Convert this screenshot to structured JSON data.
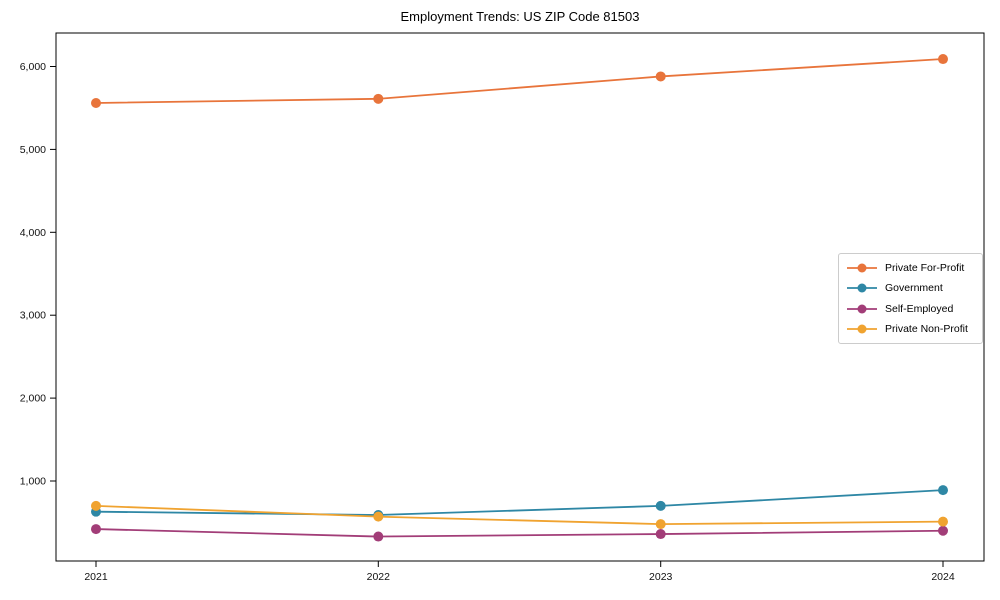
{
  "chart_data": {
    "type": "line",
    "title": "Employment Trends: US ZIP Code 81503",
    "x": [
      "2021",
      "2022",
      "2023",
      "2024"
    ],
    "series": [
      {
        "name": "Private For-Profit",
        "color": "#E8743B",
        "values": [
          5560,
          5610,
          5880,
          6090
        ]
      },
      {
        "name": "Government",
        "color": "#2E87A5",
        "values": [
          630,
          590,
          700,
          890
        ]
      },
      {
        "name": "Self-Employed",
        "color": "#A23D78",
        "values": [
          420,
          330,
          360,
          400
        ]
      },
      {
        "name": "Private Non-Profit",
        "color": "#F0A330",
        "values": [
          700,
          570,
          480,
          510
        ]
      }
    ],
    "y_ticks": [
      1000,
      2000,
      3000,
      4000,
      5000,
      6000
    ],
    "y_tick_labels": [
      "1,000",
      "2,000",
      "3,000",
      "4,000",
      "5,000",
      "6,000"
    ],
    "ylim": [
      35,
      6400
    ],
    "xlabel": "",
    "ylabel": "",
    "grid": false,
    "marker": "circle",
    "legend_position": "center right"
  }
}
